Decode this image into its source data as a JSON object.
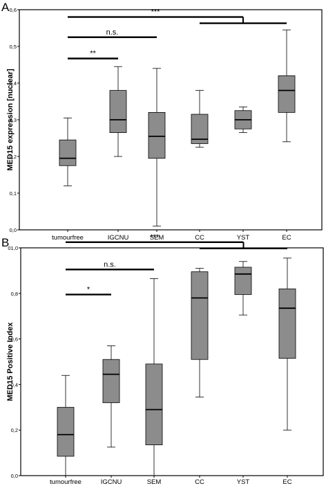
{
  "chart_data": [
    {
      "type": "box",
      "panel_label": "A",
      "ylabel": "MED15 expression [nuclear]",
      "ylim": [
        0,
        0.6
      ],
      "yticks": [
        "0,0",
        "0,1",
        "0,2",
        "0,3",
        "0,4",
        "0,5",
        "0,6"
      ],
      "categories": [
        "tumourfree",
        "IGCNU",
        "SEM",
        "CC",
        "YST",
        "EC"
      ],
      "boxes": [
        {
          "min": 0.12,
          "q1": 0.175,
          "median": 0.195,
          "q3": 0.245,
          "max": 0.305
        },
        {
          "min": 0.2,
          "q1": 0.265,
          "median": 0.3,
          "q3": 0.38,
          "max": 0.445
        },
        {
          "min": 0.01,
          "q1": 0.195,
          "median": 0.255,
          "q3": 0.32,
          "max": 0.44
        },
        {
          "min": 0.225,
          "q1": 0.235,
          "median": 0.247,
          "q3": 0.315,
          "max": 0.38
        },
        {
          "min": 0.265,
          "q1": 0.275,
          "median": 0.3,
          "q3": 0.325,
          "max": 0.335
        },
        {
          "min": 0.24,
          "q1": 0.32,
          "median": 0.38,
          "q3": 0.42,
          "max": 0.545
        }
      ],
      "annotations": [
        {
          "text": "***",
          "from": 0,
          "to": [
            3,
            5
          ],
          "level": 0.58
        },
        {
          "text": "n.s.",
          "from": 0,
          "to": 2,
          "level": 0.525
        },
        {
          "text": "**",
          "from": 0,
          "to": 1,
          "level": 0.467
        }
      ]
    },
    {
      "type": "box",
      "panel_label": "B",
      "ylabel": "MED15 Positive Index",
      "ylim": [
        0,
        1.0
      ],
      "yticks": [
        "0,0",
        "0,2",
        "0,4",
        "0,6",
        "0,8",
        "01,0"
      ],
      "categories": [
        "tumourfree",
        "IGCNU",
        "SEM",
        "CC",
        "YST",
        "EC"
      ],
      "boxes": [
        {
          "min": 0.0,
          "q1": 0.085,
          "median": 0.18,
          "q3": 0.3,
          "max": 0.44
        },
        {
          "min": 0.125,
          "q1": 0.32,
          "median": 0.445,
          "q3": 0.51,
          "max": 0.57
        },
        {
          "min": 0.0,
          "q1": 0.135,
          "median": 0.29,
          "q3": 0.49,
          "max": 0.865
        },
        {
          "min": 0.345,
          "q1": 0.51,
          "median": 0.78,
          "q3": 0.895,
          "max": 0.91
        },
        {
          "min": 0.705,
          "q1": 0.795,
          "median": 0.885,
          "q3": 0.915,
          "max": 0.94
        },
        {
          "min": 0.2,
          "q1": 0.515,
          "median": 0.735,
          "q3": 0.82,
          "max": 0.955
        }
      ],
      "annotations": [
        {
          "text": "***",
          "from": 0,
          "to": [
            3,
            5
          ],
          "level": 1.025
        },
        {
          "text": "n.s.",
          "from": 0,
          "to": 2,
          "level": 0.905
        },
        {
          "text": "*",
          "from": 0,
          "to": 1,
          "level": 0.795
        }
      ]
    }
  ],
  "colors": {
    "box_fill": "#8c8c8c",
    "ink": "#000000"
  }
}
